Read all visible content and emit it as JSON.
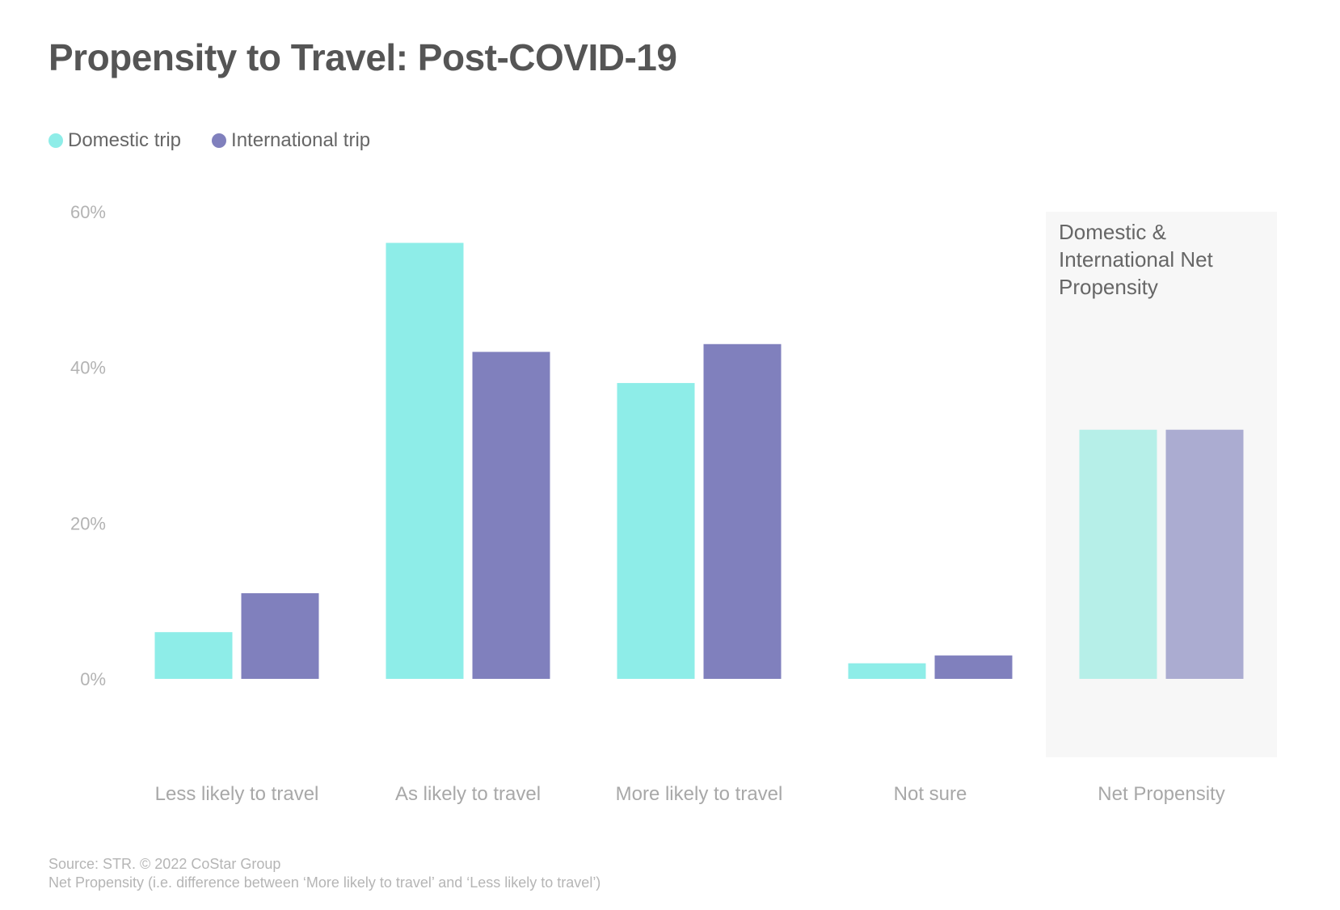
{
  "title": "Propensity to Travel: Post-COVID-19",
  "legend": [
    {
      "label": "Domestic trip",
      "color": "#8eede8"
    },
    {
      "label": "International trip",
      "color": "#8080bd"
    }
  ],
  "panel_label_lines": [
    "Domestic &",
    "International Net",
    "Propensity"
  ],
  "source_lines": [
    "Source: STR. © 2022 CoStar Group",
    "Net Propensity (i.e. difference between ‘More likely to travel’ and ‘Less likely to travel’)"
  ],
  "chart_data": {
    "type": "bar",
    "categories": [
      "Less likely to travel",
      "As likely to travel",
      "More likely to travel",
      "Not sure",
      "Net Propensity"
    ],
    "series": [
      {
        "name": "Domestic trip",
        "values": [
          6,
          56,
          38,
          2,
          32
        ],
        "color": "#8eede8",
        "faded_color": "#b6efe8"
      },
      {
        "name": "International trip",
        "values": [
          11,
          42,
          43,
          3,
          32
        ],
        "color": "#8080bd",
        "faded_color": "#abacd1"
      }
    ],
    "yticks": [
      "0%",
      "20%",
      "40%",
      "60%"
    ],
    "ylim": [
      0,
      60
    ],
    "highlighted_category": "Net Propensity",
    "panel_background": "#f7f7f7",
    "legend_position": "top-left"
  }
}
